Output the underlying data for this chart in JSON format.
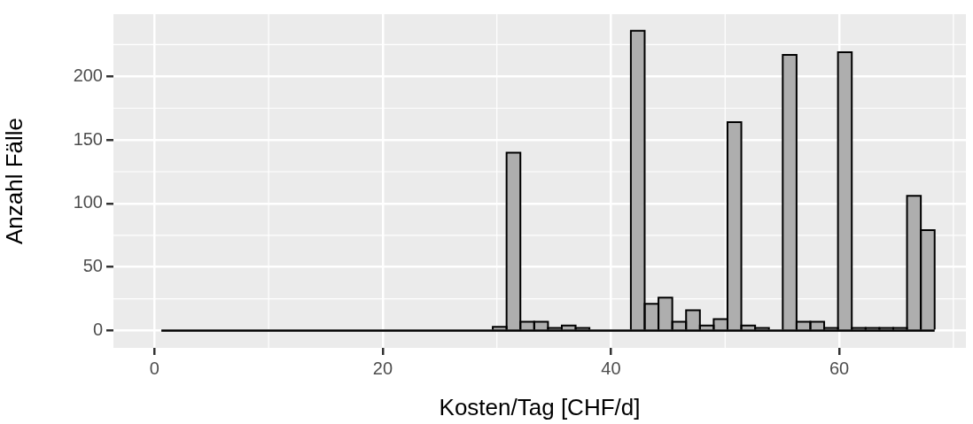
{
  "chart_data": {
    "type": "histogram",
    "xlabel": "Kosten/Tag [CHF/d]",
    "ylabel": "Anzahl Fälle",
    "bins": [
      0.6,
      1.81,
      3.02,
      4.23,
      5.44,
      6.65,
      7.86,
      9.07,
      10.28,
      11.49,
      12.7,
      13.91,
      15.12,
      16.33,
      17.54,
      18.75,
      19.96,
      21.17,
      22.38,
      23.59,
      24.8,
      26.01,
      27.22,
      28.43,
      29.64,
      30.85,
      32.06,
      33.27,
      34.48,
      35.69,
      36.9,
      38.11,
      39.32,
      40.53,
      41.74,
      42.95,
      44.16,
      45.37,
      46.58,
      47.79,
      49,
      50.21,
      51.42,
      52.63,
      53.84,
      55.05,
      56.26,
      57.47,
      58.68,
      59.89,
      61.1,
      62.31,
      63.52,
      64.73,
      65.94,
      67.15,
      68.36
    ],
    "values": [
      0,
      0,
      0,
      0,
      0,
      0,
      0,
      0,
      0,
      0,
      0,
      0,
      0,
      0,
      0,
      0,
      0,
      0,
      0,
      0,
      0,
      0,
      0,
      0,
      3,
      140,
      7,
      7,
      2,
      4,
      2,
      0,
      0,
      0,
      236,
      21,
      26,
      7,
      16,
      4,
      9,
      164,
      4,
      2,
      0,
      217,
      7,
      7,
      2,
      219,
      2,
      2,
      2,
      2,
      106,
      79
    ],
    "color": "#aeaeae",
    "xlim": [
      -3.6,
      71.1
    ],
    "ylim": [
      -13.6,
      249
    ],
    "xticks": [
      0,
      20,
      40,
      60
    ],
    "yticks": [
      0,
      50,
      100,
      150,
      200
    ],
    "grid": true
  }
}
